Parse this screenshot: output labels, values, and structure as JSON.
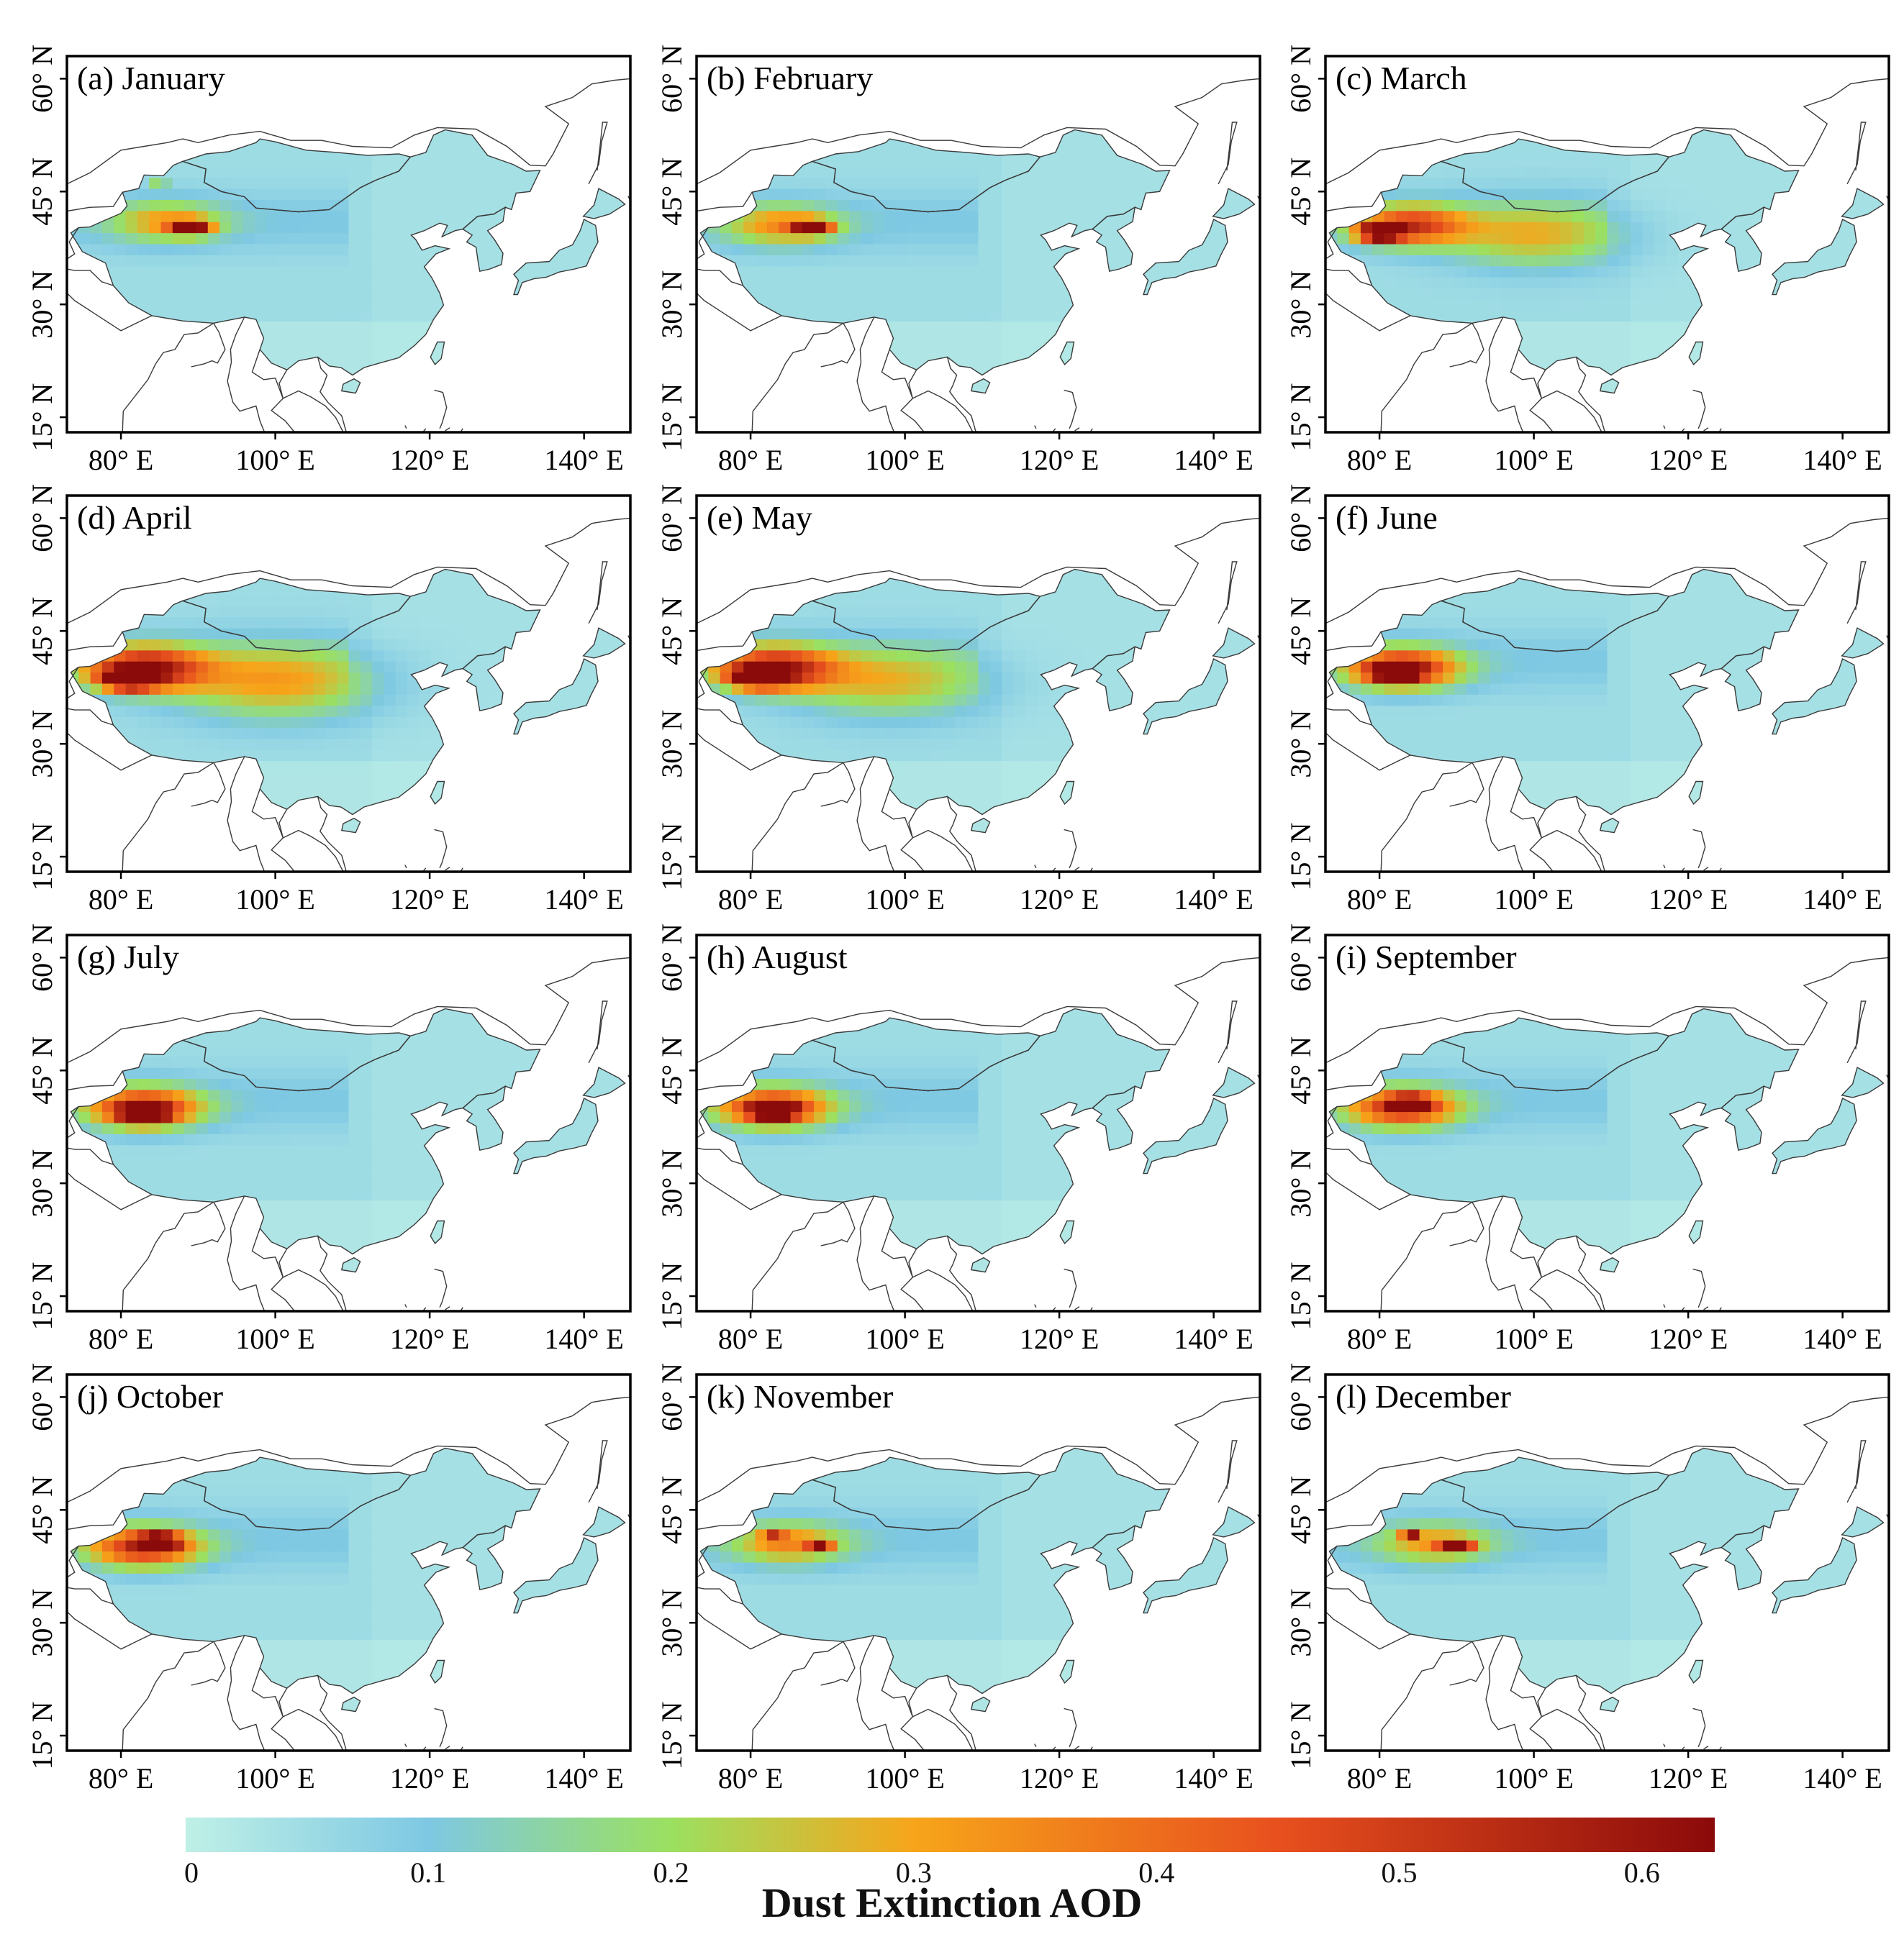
{
  "figure": {
    "panels": [
      {
        "label": "(a) January",
        "hotspots": [
          {
            "lon": 86,
            "lat": 41,
            "intensity": 0.22,
            "spread": 1.0
          },
          {
            "lon": 89,
            "lat": 40.2,
            "intensity": 0.55,
            "spread": 0.35
          },
          {
            "lon": 85,
            "lat": 46.5,
            "intensity": 0.5,
            "spread": 0.15
          }
        ]
      },
      {
        "label": "(b) February",
        "hotspots": [
          {
            "lon": 84,
            "lat": 40.5,
            "intensity": 0.25,
            "spread": 1.0
          },
          {
            "lon": 88,
            "lat": 40.2,
            "intensity": 0.55,
            "spread": 0.35
          }
        ]
      },
      {
        "label": "(c) March",
        "hotspots": [
          {
            "lon": 84,
            "lat": 40.5,
            "intensity": 0.4,
            "spread": 1.0
          },
          {
            "lon": 80,
            "lat": 39.5,
            "intensity": 0.6,
            "spread": 0.4
          },
          {
            "lon": 100,
            "lat": 39,
            "intensity": 0.2,
            "spread": 1.6
          }
        ]
      },
      {
        "label": "(d) April",
        "hotspots": [
          {
            "lon": 83,
            "lat": 40,
            "intensity": 0.52,
            "spread": 1.1
          },
          {
            "lon": 81,
            "lat": 38.5,
            "intensity": 0.65,
            "spread": 0.45
          },
          {
            "lon": 100,
            "lat": 38,
            "intensity": 0.24,
            "spread": 1.8
          }
        ]
      },
      {
        "label": "(e) May",
        "hotspots": [
          {
            "lon": 83,
            "lat": 40,
            "intensity": 0.5,
            "spread": 1.1
          },
          {
            "lon": 81,
            "lat": 38.8,
            "intensity": 0.62,
            "spread": 0.45
          },
          {
            "lon": 98,
            "lat": 38,
            "intensity": 0.2,
            "spread": 1.7
          }
        ]
      },
      {
        "label": "(f) June",
        "hotspots": [
          {
            "lon": 83,
            "lat": 40,
            "intensity": 0.5,
            "spread": 1.0
          },
          {
            "lon": 82,
            "lat": 39.5,
            "intensity": 0.6,
            "spread": 0.4
          }
        ]
      },
      {
        "label": "(g) July",
        "hotspots": [
          {
            "lon": 83,
            "lat": 40,
            "intensity": 0.48,
            "spread": 1.0
          },
          {
            "lon": 83,
            "lat": 39.2,
            "intensity": 0.62,
            "spread": 0.4
          }
        ]
      },
      {
        "label": "(h) August",
        "hotspots": [
          {
            "lon": 83,
            "lat": 40,
            "intensity": 0.46,
            "spread": 1.0
          },
          {
            "lon": 83,
            "lat": 39.6,
            "intensity": 0.6,
            "spread": 0.38
          }
        ]
      },
      {
        "label": "(i) September",
        "hotspots": [
          {
            "lon": 83,
            "lat": 40,
            "intensity": 0.44,
            "spread": 1.0
          },
          {
            "lon": 84,
            "lat": 40.6,
            "intensity": 0.58,
            "spread": 0.35
          }
        ]
      },
      {
        "label": "(j) October",
        "hotspots": [
          {
            "lon": 83,
            "lat": 40,
            "intensity": 0.45,
            "spread": 1.0
          },
          {
            "lon": 85,
            "lat": 40.8,
            "intensity": 0.62,
            "spread": 0.35
          }
        ]
      },
      {
        "label": "(k) November",
        "hotspots": [
          {
            "lon": 85,
            "lat": 40.5,
            "intensity": 0.26,
            "spread": 1.0
          },
          {
            "lon": 83,
            "lat": 41.2,
            "intensity": 0.55,
            "spread": 0.2
          },
          {
            "lon": 89,
            "lat": 40,
            "intensity": 0.55,
            "spread": 0.2
          }
        ]
      },
      {
        "label": "(l) December",
        "hotspots": [
          {
            "lon": 87,
            "lat": 40.5,
            "intensity": 0.22,
            "spread": 1.0
          },
          {
            "lon": 90,
            "lat": 40.2,
            "intensity": 0.55,
            "spread": 0.3
          },
          {
            "lon": 84,
            "lat": 41.5,
            "intensity": 0.5,
            "spread": 0.15
          }
        ]
      }
    ],
    "axes": {
      "lon_ticks": [
        80,
        100,
        120,
        140
      ],
      "lon_tick_labels": [
        "80° E",
        "100° E",
        "120° E",
        "140° E"
      ],
      "lat_ticks": [
        15,
        30,
        45,
        60
      ],
      "lat_tick_labels": [
        "15° N",
        "30° N",
        "45° N",
        "60° N"
      ],
      "lon_range": [
        73,
        146
      ],
      "lat_range": [
        13,
        63
      ]
    },
    "colorbar": {
      "label": "Dust Extinction AOD",
      "ticks": [
        0,
        0.1,
        0.2,
        0.3,
        0.4,
        0.5,
        0.6
      ],
      "tick_labels": [
        "0",
        "0.1",
        "0.2",
        "0.3",
        "0.4",
        "0.5",
        "0.6"
      ],
      "range": [
        0,
        0.63
      ],
      "stops": [
        {
          "value": 0.0,
          "color": "#bff0e6"
        },
        {
          "value": 0.1,
          "color": "#7ec8e3"
        },
        {
          "value": 0.2,
          "color": "#9be060"
        },
        {
          "value": 0.3,
          "color": "#f7a51a"
        },
        {
          "value": 0.45,
          "color": "#e8501e"
        },
        {
          "value": 0.63,
          "color": "#8b0a0a"
        }
      ]
    },
    "colors": {
      "ocean": "#ffffff",
      "frame": "#000000",
      "coast": "#3a3a3a"
    }
  }
}
